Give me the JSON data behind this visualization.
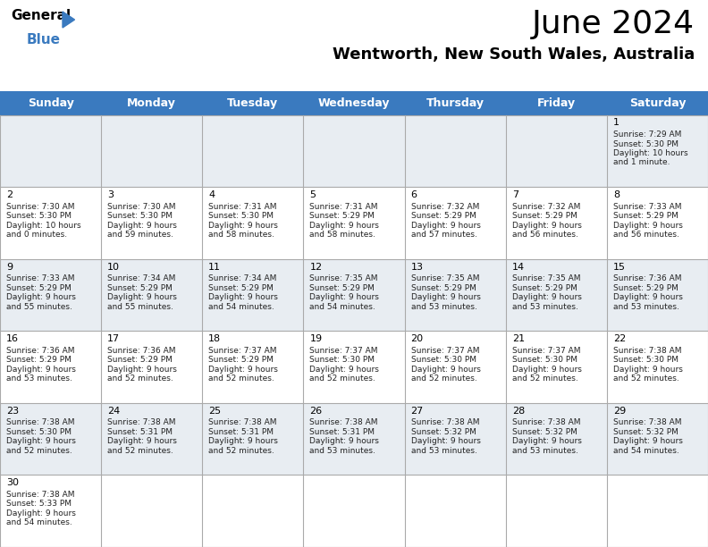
{
  "title": "June 2024",
  "subtitle": "Wentworth, New South Wales, Australia",
  "header_bg": "#3a7abf",
  "header_text_color": "#ffffff",
  "days_of_week": [
    "Sunday",
    "Monday",
    "Tuesday",
    "Wednesday",
    "Thursday",
    "Friday",
    "Saturday"
  ],
  "row_colors": [
    "#e8edf2",
    "#ffffff"
  ],
  "line_color": "#aaaaaa",
  "calendar_data": {
    "1": {
      "sunrise": "7:29 AM",
      "sunset": "5:30 PM",
      "daylight": "10 hours",
      "daylight2": "and 1 minute."
    },
    "2": {
      "sunrise": "7:30 AM",
      "sunset": "5:30 PM",
      "daylight": "10 hours",
      "daylight2": "and 0 minutes."
    },
    "3": {
      "sunrise": "7:30 AM",
      "sunset": "5:30 PM",
      "daylight": "9 hours",
      "daylight2": "and 59 minutes."
    },
    "4": {
      "sunrise": "7:31 AM",
      "sunset": "5:30 PM",
      "daylight": "9 hours",
      "daylight2": "and 58 minutes."
    },
    "5": {
      "sunrise": "7:31 AM",
      "sunset": "5:29 PM",
      "daylight": "9 hours",
      "daylight2": "and 58 minutes."
    },
    "6": {
      "sunrise": "7:32 AM",
      "sunset": "5:29 PM",
      "daylight": "9 hours",
      "daylight2": "and 57 minutes."
    },
    "7": {
      "sunrise": "7:32 AM",
      "sunset": "5:29 PM",
      "daylight": "9 hours",
      "daylight2": "and 56 minutes."
    },
    "8": {
      "sunrise": "7:33 AM",
      "sunset": "5:29 PM",
      "daylight": "9 hours",
      "daylight2": "and 56 minutes."
    },
    "9": {
      "sunrise": "7:33 AM",
      "sunset": "5:29 PM",
      "daylight": "9 hours",
      "daylight2": "and 55 minutes."
    },
    "10": {
      "sunrise": "7:34 AM",
      "sunset": "5:29 PM",
      "daylight": "9 hours",
      "daylight2": "and 55 minutes."
    },
    "11": {
      "sunrise": "7:34 AM",
      "sunset": "5:29 PM",
      "daylight": "9 hours",
      "daylight2": "and 54 minutes."
    },
    "12": {
      "sunrise": "7:35 AM",
      "sunset": "5:29 PM",
      "daylight": "9 hours",
      "daylight2": "and 54 minutes."
    },
    "13": {
      "sunrise": "7:35 AM",
      "sunset": "5:29 PM",
      "daylight": "9 hours",
      "daylight2": "and 53 minutes."
    },
    "14": {
      "sunrise": "7:35 AM",
      "sunset": "5:29 PM",
      "daylight": "9 hours",
      "daylight2": "and 53 minutes."
    },
    "15": {
      "sunrise": "7:36 AM",
      "sunset": "5:29 PM",
      "daylight": "9 hours",
      "daylight2": "and 53 minutes."
    },
    "16": {
      "sunrise": "7:36 AM",
      "sunset": "5:29 PM",
      "daylight": "9 hours",
      "daylight2": "and 53 minutes."
    },
    "17": {
      "sunrise": "7:36 AM",
      "sunset": "5:29 PM",
      "daylight": "9 hours",
      "daylight2": "and 52 minutes."
    },
    "18": {
      "sunrise": "7:37 AM",
      "sunset": "5:29 PM",
      "daylight": "9 hours",
      "daylight2": "and 52 minutes."
    },
    "19": {
      "sunrise": "7:37 AM",
      "sunset": "5:30 PM",
      "daylight": "9 hours",
      "daylight2": "and 52 minutes."
    },
    "20": {
      "sunrise": "7:37 AM",
      "sunset": "5:30 PM",
      "daylight": "9 hours",
      "daylight2": "and 52 minutes."
    },
    "21": {
      "sunrise": "7:37 AM",
      "sunset": "5:30 PM",
      "daylight": "9 hours",
      "daylight2": "and 52 minutes."
    },
    "22": {
      "sunrise": "7:38 AM",
      "sunset": "5:30 PM",
      "daylight": "9 hours",
      "daylight2": "and 52 minutes."
    },
    "23": {
      "sunrise": "7:38 AM",
      "sunset": "5:30 PM",
      "daylight": "9 hours",
      "daylight2": "and 52 minutes."
    },
    "24": {
      "sunrise": "7:38 AM",
      "sunset": "5:31 PM",
      "daylight": "9 hours",
      "daylight2": "and 52 minutes."
    },
    "25": {
      "sunrise": "7:38 AM",
      "sunset": "5:31 PM",
      "daylight": "9 hours",
      "daylight2": "and 52 minutes."
    },
    "26": {
      "sunrise": "7:38 AM",
      "sunset": "5:31 PM",
      "daylight": "9 hours",
      "daylight2": "and 53 minutes."
    },
    "27": {
      "sunrise": "7:38 AM",
      "sunset": "5:32 PM",
      "daylight": "9 hours",
      "daylight2": "and 53 minutes."
    },
    "28": {
      "sunrise": "7:38 AM",
      "sunset": "5:32 PM",
      "daylight": "9 hours",
      "daylight2": "and 53 minutes."
    },
    "29": {
      "sunrise": "7:38 AM",
      "sunset": "5:32 PM",
      "daylight": "9 hours",
      "daylight2": "and 54 minutes."
    },
    "30": {
      "sunrise": "7:38 AM",
      "sunset": "5:33 PM",
      "daylight": "9 hours",
      "daylight2": "and 54 minutes."
    }
  },
  "fig_width": 7.92,
  "fig_height": 6.12,
  "dpi": 100,
  "title_fontsize": 26,
  "subtitle_fontsize": 13,
  "dow_fontsize": 9,
  "day_num_fontsize": 8,
  "cell_fontsize": 6.5
}
